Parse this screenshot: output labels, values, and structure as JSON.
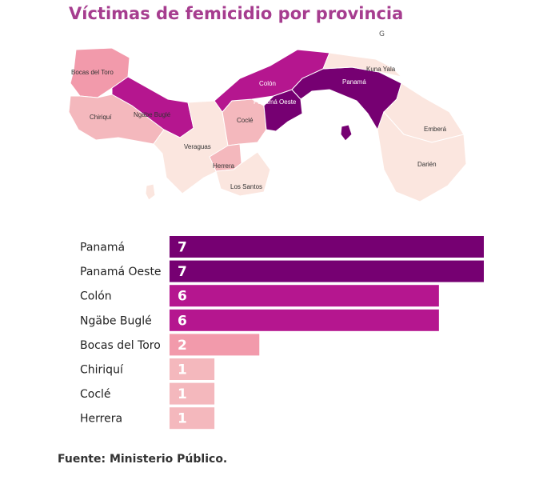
{
  "title": "Víctimas de femicidio por provincia",
  "brand_mark": "G",
  "map": {
    "color_scale": [
      "#fbe6df",
      "#f4b8bd",
      "#f29aab",
      "#b5168f",
      "#760072"
    ],
    "regions": [
      {
        "name": "Bocas del Toro",
        "victims": 2
      },
      {
        "name": "Chiriquí",
        "victims": 1
      },
      {
        "name": "Ngäbe Buglé",
        "victims": 6
      },
      {
        "name": "Veraguas",
        "victims": 0
      },
      {
        "name": "Coclé",
        "victims": 1
      },
      {
        "name": "Herrera",
        "victims": 1
      },
      {
        "name": "Los Santos",
        "victims": 0
      },
      {
        "name": "Colón",
        "victims": 6
      },
      {
        "name": "Panamá Oeste",
        "victims": 7
      },
      {
        "name": "Panamá",
        "victims": 7
      },
      {
        "name": "Kuna Yala",
        "victims": 0
      },
      {
        "name": "Emberá",
        "victims": 0
      },
      {
        "name": "Darién",
        "victims": 0
      }
    ]
  },
  "chart_data": {
    "type": "bar",
    "orientation": "horizontal",
    "title": "Víctimas de femicidio por provincia",
    "categories": [
      "Panamá",
      "Panamá Oeste",
      "Colón",
      "Ngäbe Buglé",
      "Bocas del Toro",
      "Chiriquí",
      "Coclé",
      "Herrera"
    ],
    "values": [
      7,
      7,
      6,
      6,
      2,
      1,
      1,
      1
    ],
    "colors": [
      "#760072",
      "#760072",
      "#b5168f",
      "#b5168f",
      "#f29aab",
      "#f4b8bd",
      "#f4b8bd",
      "#f4b8bd"
    ],
    "xlim": [
      0,
      7
    ],
    "grid": false,
    "legend": "none"
  },
  "source": "Fuente: Ministerio Público."
}
